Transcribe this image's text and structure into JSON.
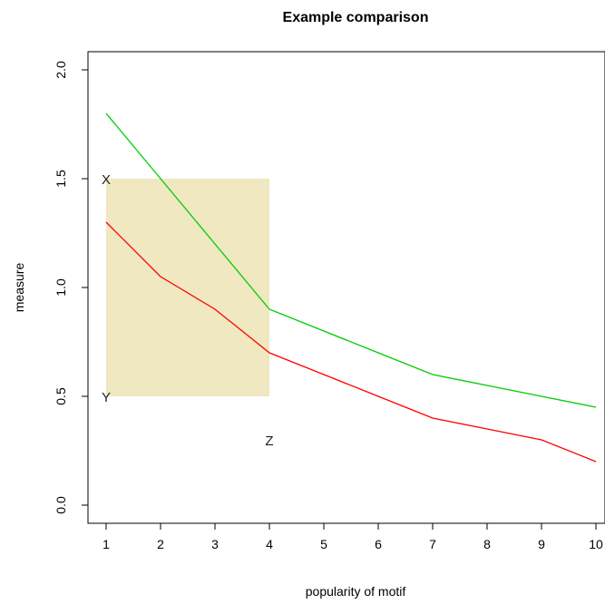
{
  "chart_data": {
    "type": "line",
    "title": "Example comparison",
    "xlabel": "popularity of motif",
    "ylabel": "measure",
    "xlim": [
      1,
      10
    ],
    "ylim": [
      0,
      2
    ],
    "x_ticks": [
      "1",
      "2",
      "3",
      "4",
      "5",
      "6",
      "7",
      "8",
      "9",
      "10"
    ],
    "y_ticks": [
      "0.0",
      "0.5",
      "1.0",
      "1.5",
      "2.0"
    ],
    "grid": false,
    "x": [
      1,
      2,
      3,
      4,
      5,
      6,
      7,
      8,
      9,
      10
    ],
    "series": [
      {
        "color": "#00cc00",
        "values": [
          1.8,
          1.5,
          1.2,
          0.9,
          0.8,
          0.7,
          0.6,
          0.55,
          0.5,
          0.45
        ]
      },
      {
        "color": "#ff0000",
        "values": [
          1.3,
          1.05,
          0.9,
          0.7,
          0.6,
          0.5,
          0.4,
          0.35,
          0.3,
          0.2
        ]
      }
    ],
    "shaded_region": {
      "x": [
        1,
        4
      ],
      "y": [
        0.5,
        1.5
      ],
      "color": "#efe8c0"
    },
    "annotations": [
      {
        "text": "X",
        "x": 1,
        "y": 1.5
      },
      {
        "text": "Y",
        "x": 1,
        "y": 0.5
      },
      {
        "text": "Z",
        "x": 4,
        "y": 0.3
      }
    ]
  }
}
